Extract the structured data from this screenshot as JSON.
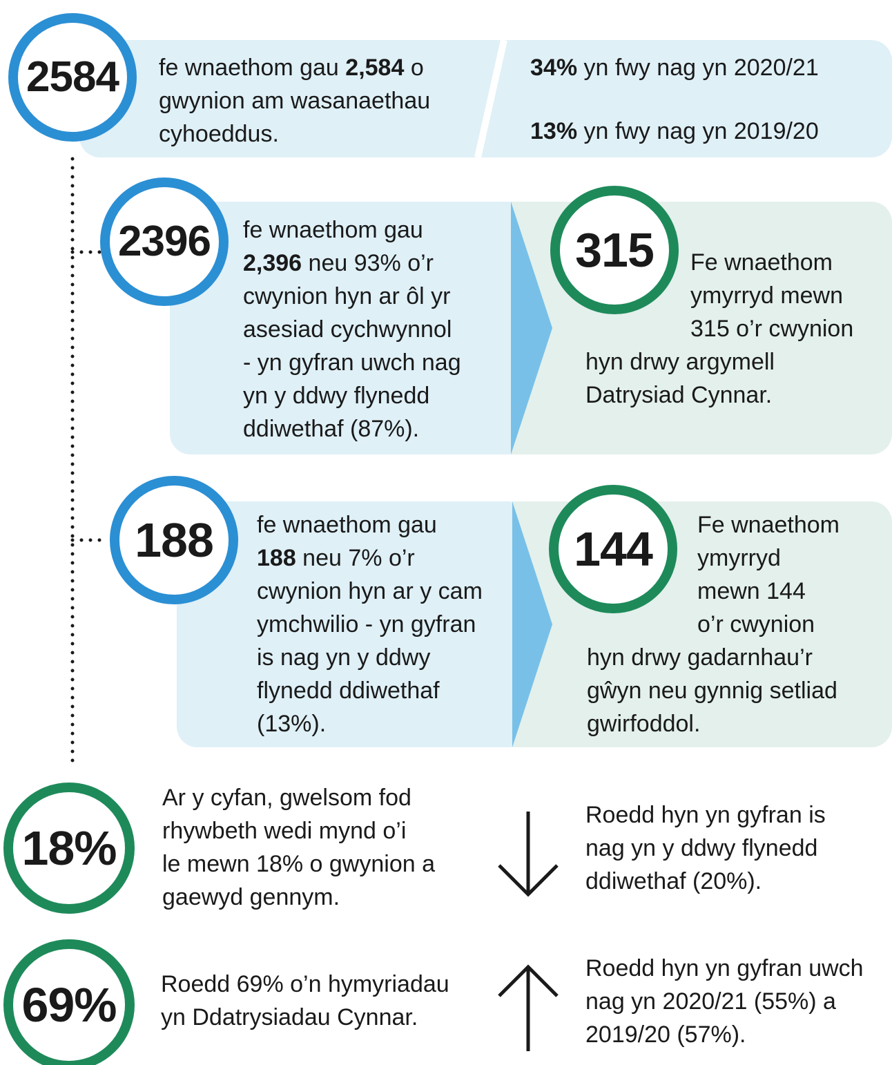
{
  "summary": {
    "number": "2584",
    "text": [
      [
        "fe wnaethom gau ",
        {
          "text": "2,584",
          "bold": true
        },
        " o"
      ],
      [
        "gwynion am wasanaethau"
      ],
      [
        "cyhoeddus."
      ]
    ],
    "comparisons": [
      [
        [
          {
            "text": "34%",
            "bold": true
          },
          " yn fwy nag yn 2020/21"
        ]
      ],
      [
        [
          {
            "text": "13%",
            "bold": true
          },
          " yn fwy nag yn 2019/20"
        ]
      ]
    ]
  },
  "assessment": {
    "number": "2396",
    "text": [
      [
        "fe wnaethom gau"
      ],
      [
        {
          "text": "2,396",
          "bold": true
        },
        " neu 93% o’r"
      ],
      [
        "cwynion hyn ar ôl yr"
      ],
      [
        "asesiad cychwynnol"
      ],
      [
        "- yn gyfran uwch nag"
      ],
      [
        "yn y ddwy flynedd"
      ],
      [
        "ddiwethaf (87%)."
      ]
    ]
  },
  "early_resolution": {
    "number": "315",
    "text": [
      [
        "Fe wnaethom"
      ],
      [
        "ymyrryd mewn"
      ],
      [
        "315 o’r cwynion"
      ],
      [
        "hyn drwy argymell"
      ],
      [
        "Datrysiad Cynnar."
      ]
    ]
  },
  "investigation": {
    "number": "188",
    "text": [
      [
        "fe wnaethom gau"
      ],
      [
        {
          "text": "188",
          "bold": true
        },
        " neu 7% o’r"
      ],
      [
        "cwynion hyn ar y cam"
      ],
      [
        "ymchwilio - yn gyfran"
      ],
      [
        "is nag yn y ddwy"
      ],
      [
        "flynedd ddiwethaf"
      ],
      [
        "(13%)."
      ]
    ]
  },
  "intervention": {
    "number": "144",
    "text": [
      [
        "Fe wnaethom"
      ],
      [
        "ymyrryd"
      ],
      [
        "mewn 144"
      ],
      [
        "o’r cwynion"
      ],
      [
        "hyn drwy gadarnhau’r"
      ],
      [
        "gŵyn neu gynnig setliad"
      ],
      [
        "gwirfoddol."
      ]
    ]
  },
  "fault": {
    "number": "18%",
    "text": [
      [
        "Ar y cyfan, gwelsom fod"
      ],
      [
        "rhywbeth wedi mynd o’i"
      ],
      [
        "le mewn 18% o gwynion a"
      ],
      [
        "gaewyd gennym."
      ]
    ],
    "trend": {
      "direction": "down",
      "text": [
        [
          "Roedd hyn yn gyfran is"
        ],
        [
          "nag yn y ddwy flynedd"
        ],
        [
          "ddiwethaf (20%)."
        ]
      ]
    }
  },
  "early_share": {
    "number": "69%",
    "text": [
      [
        "Roedd 69% o’n hymyriadau"
      ],
      [
        "yn Ddatrysiadau Cynnar."
      ]
    ],
    "trend": {
      "direction": "up",
      "text": [
        [
          "Roedd hyn yn gyfran uwch"
        ],
        [
          "nag yn 2020/21 (55%) a"
        ],
        [
          "2019/20 (57%)."
        ]
      ]
    }
  }
}
